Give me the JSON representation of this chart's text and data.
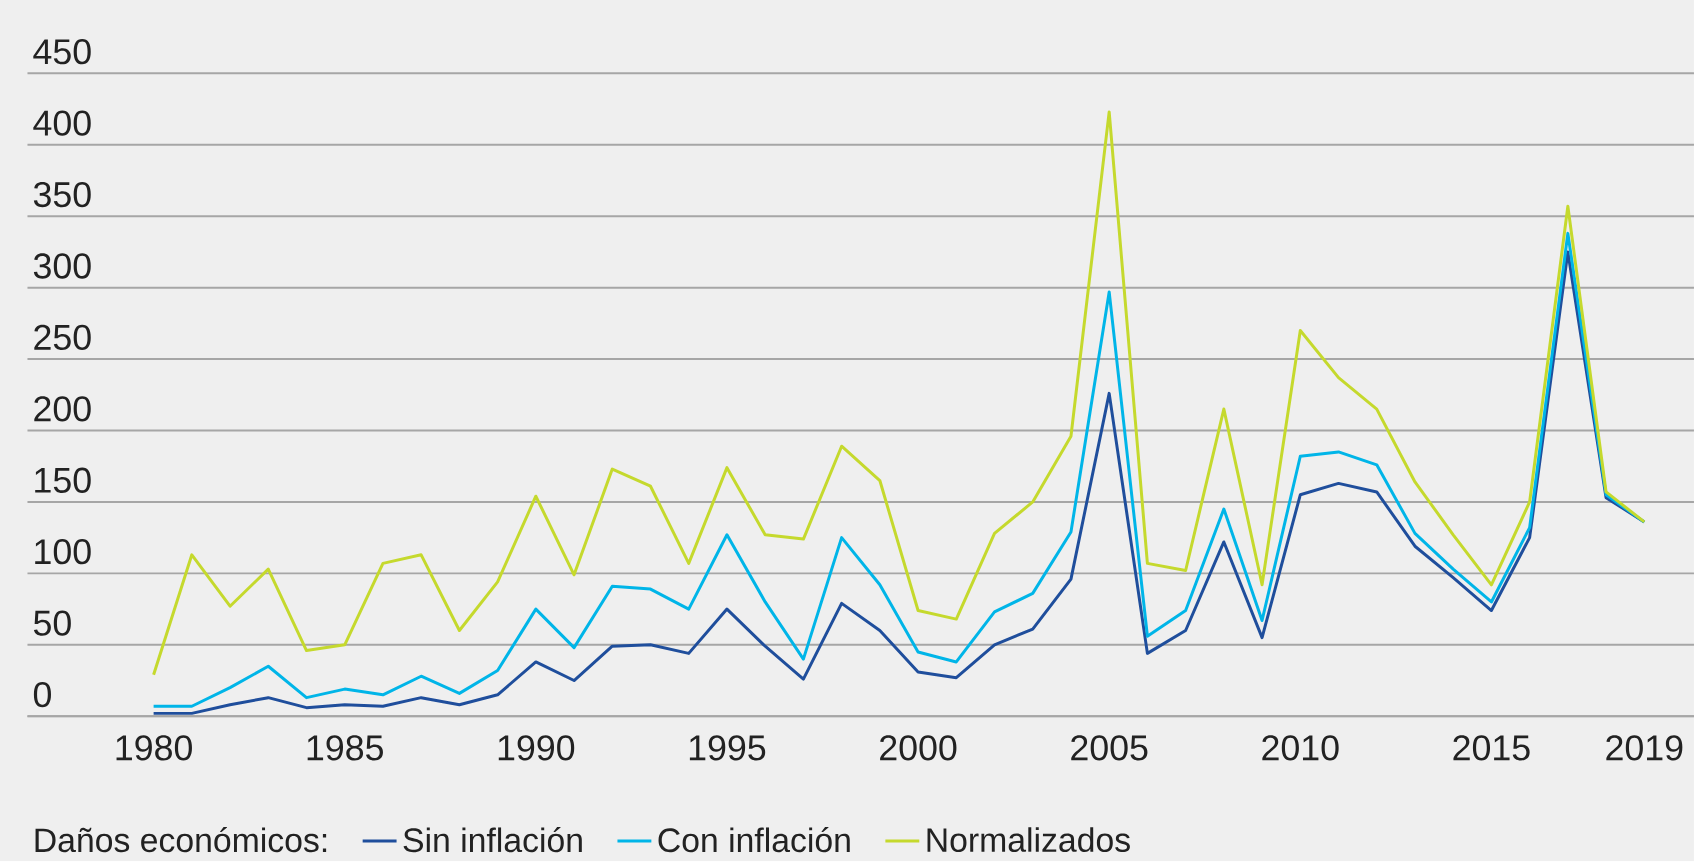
{
  "chart_data": {
    "type": "line",
    "legend_title": "Daños económicos:",
    "legend": "bottom",
    "grid": "y",
    "x": [
      1980,
      1981,
      1982,
      1983,
      1984,
      1985,
      1986,
      1987,
      1988,
      1989,
      1990,
      1991,
      1992,
      1993,
      1994,
      1995,
      1996,
      1997,
      1998,
      1999,
      2000,
      2001,
      2002,
      2003,
      2004,
      2005,
      2006,
      2007,
      2008,
      2009,
      2010,
      2011,
      2012,
      2013,
      2014,
      2015,
      2016,
      2017,
      2018,
      2019
    ],
    "xlim": [
      1976.7,
      2020.3
    ],
    "xticks": [
      1980,
      1985,
      1990,
      1995,
      2000,
      2005,
      2010,
      2015,
      2019
    ],
    "ylim": [
      0,
      450
    ],
    "yticks": [
      0,
      50,
      100,
      150,
      200,
      250,
      300,
      350,
      400,
      450
    ],
    "series": [
      {
        "name": "Sin inflación",
        "color": "#1f4e9c",
        "values": [
          2,
          2,
          8,
          13,
          6,
          8,
          7,
          13,
          8,
          15,
          38,
          25,
          49,
          50,
          44,
          75,
          49,
          26,
          79,
          60,
          31,
          27,
          50,
          61,
          96,
          226,
          44,
          60,
          122,
          55,
          155,
          163,
          157,
          119,
          97,
          74,
          125,
          325,
          153,
          136
        ]
      },
      {
        "name": "Con inflación",
        "color": "#00b5e8",
        "values": [
          7,
          7,
          20,
          35,
          13,
          19,
          15,
          28,
          16,
          32,
          75,
          48,
          91,
          89,
          75,
          127,
          80,
          40,
          125,
          92,
          45,
          38,
          73,
          86,
          129,
          297,
          56,
          74,
          145,
          67,
          182,
          185,
          176,
          128,
          103,
          80,
          132,
          338,
          155,
          136
        ]
      },
      {
        "name": "Normalizados",
        "color": "#c5d92d",
        "values": [
          29,
          113,
          77,
          103,
          46,
          50,
          107,
          113,
          60,
          94,
          154,
          99,
          173,
          161,
          107,
          174,
          127,
          124,
          189,
          165,
          74,
          68,
          128,
          150,
          196,
          423,
          107,
          102,
          215,
          92,
          270,
          237,
          215,
          164,
          127,
          92,
          150,
          357,
          157,
          136
        ]
      }
    ]
  }
}
